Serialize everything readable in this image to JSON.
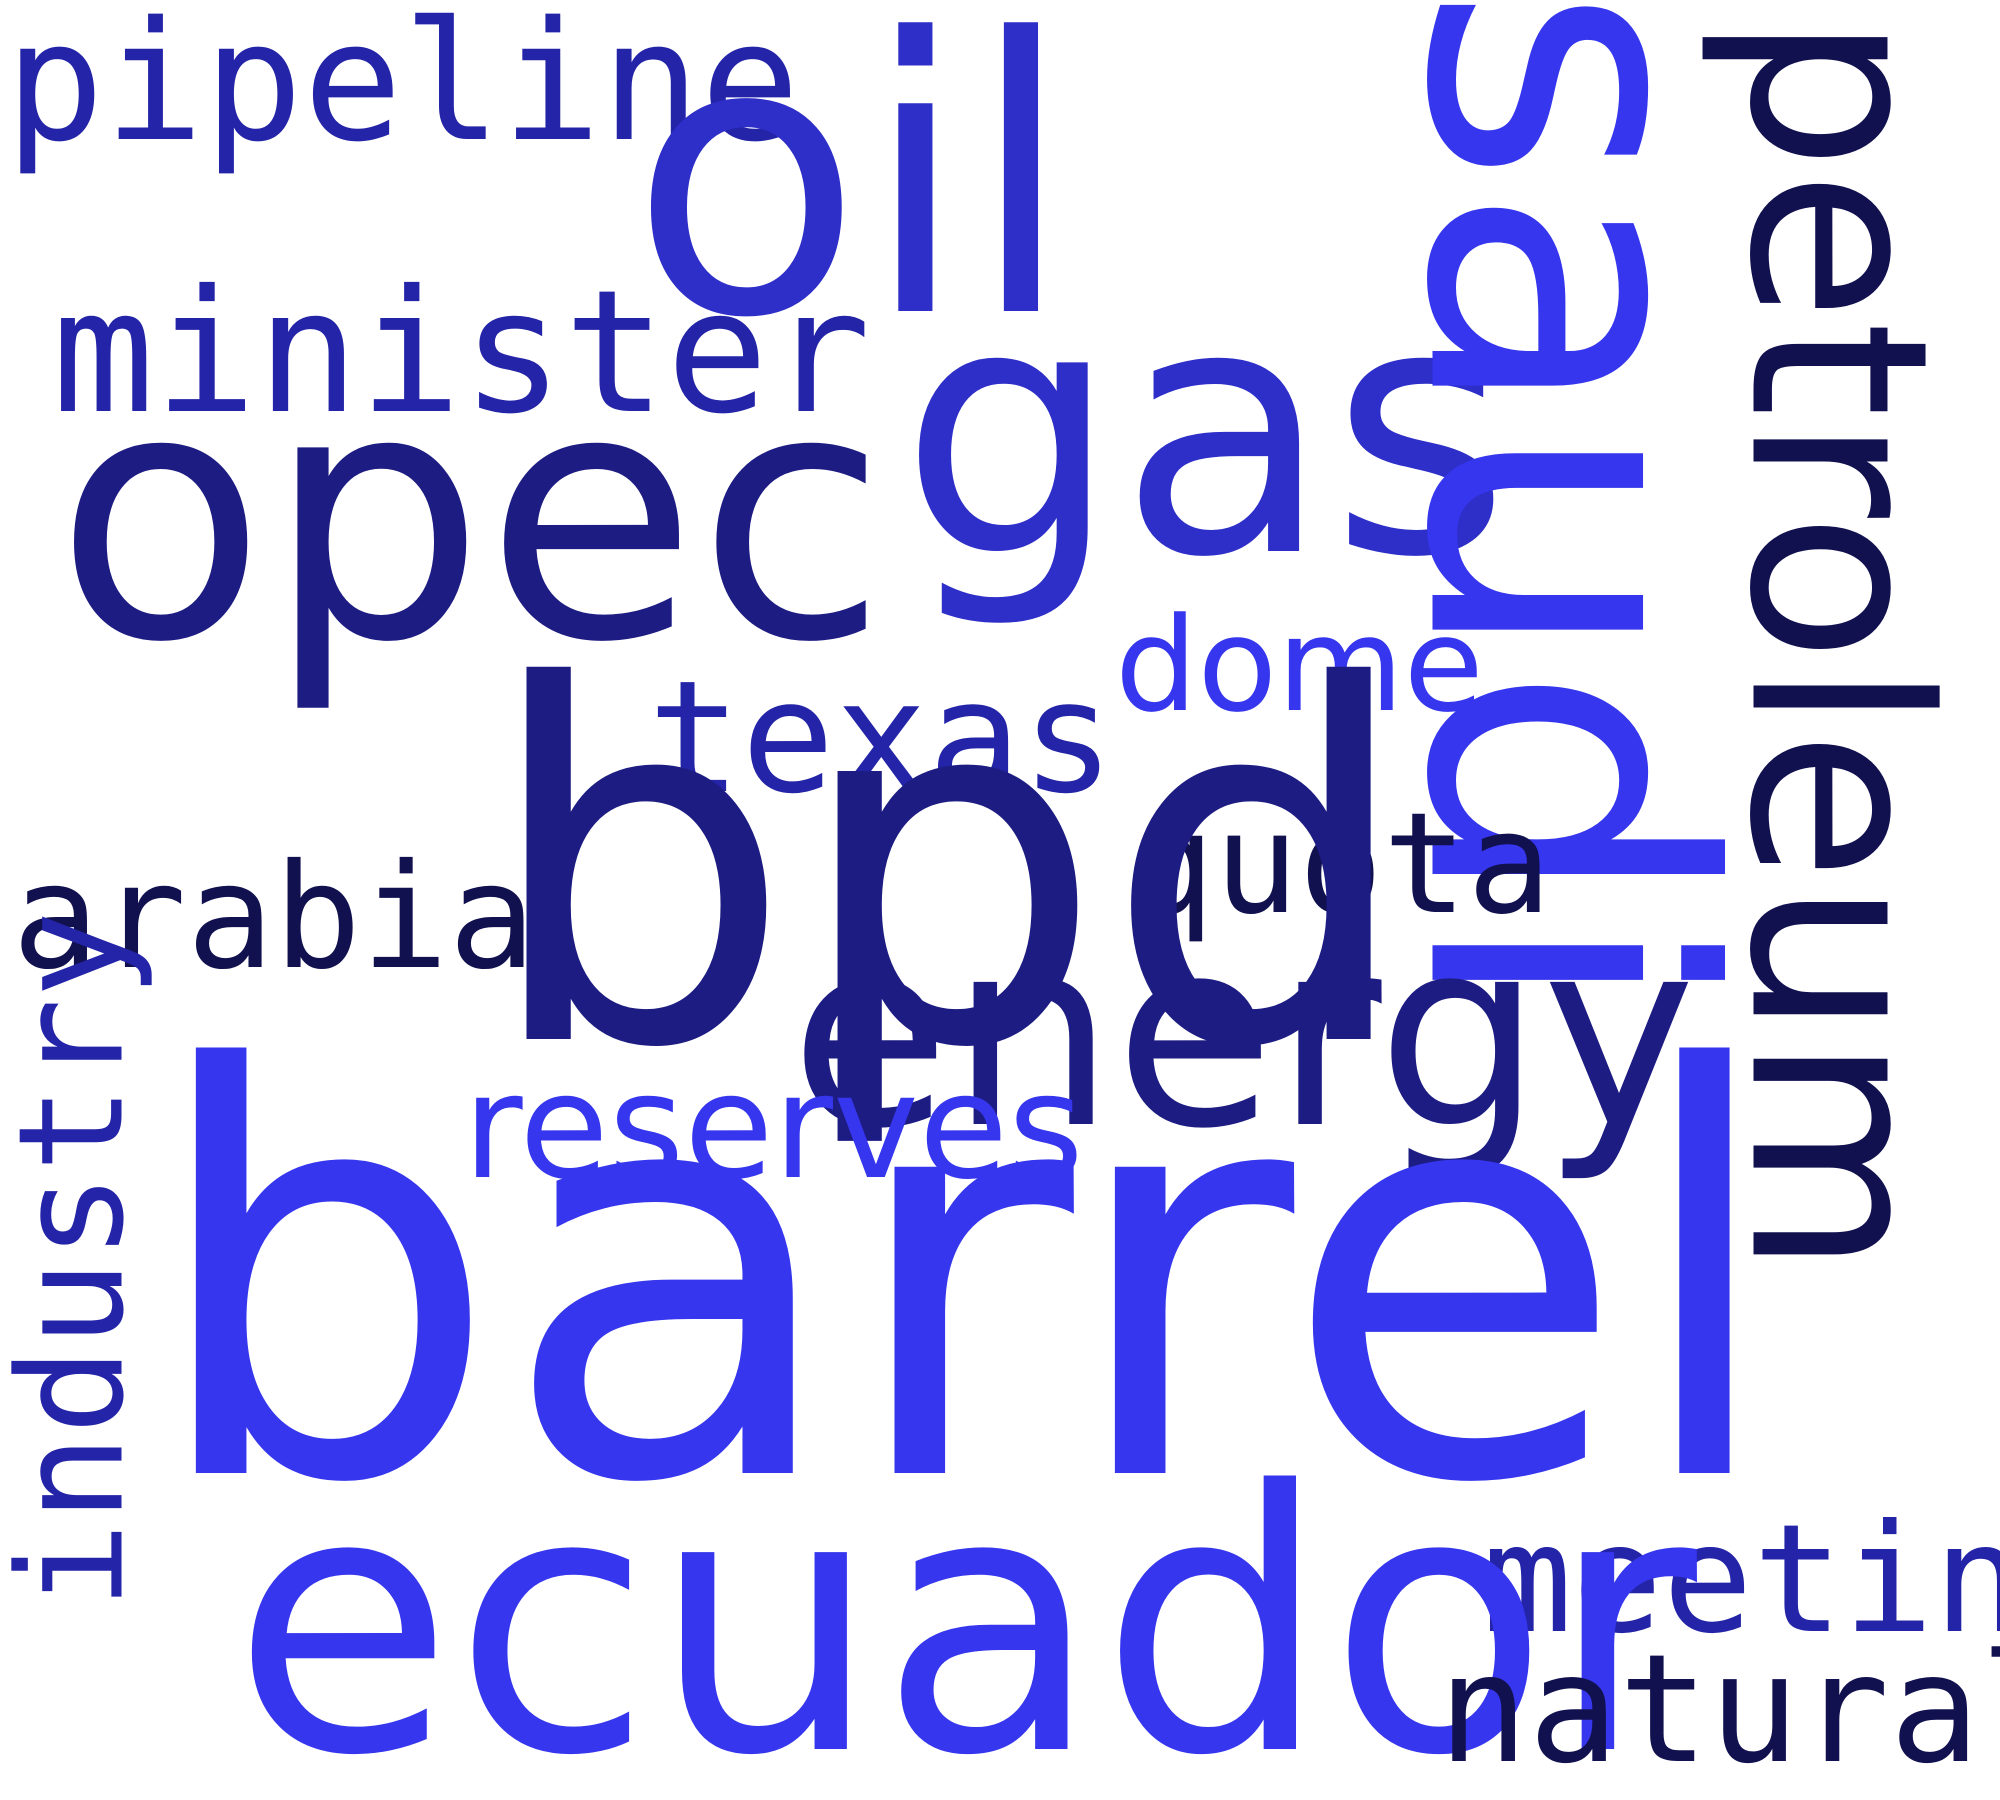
{
  "words": {
    "barrel": {
      "text": "barrel",
      "color": "#3636ee"
    },
    "bpd": {
      "text": "bpd",
      "color": "#1d1c82"
    },
    "opec": {
      "text": "opec",
      "color": "#1d1c82"
    },
    "oil": {
      "text": "oil",
      "color": "#2e2ec9"
    },
    "gas": {
      "text": "gas",
      "color": "#2e2ec9"
    },
    "saudi": {
      "text": "saudi",
      "color": "#3636ee"
    },
    "ecuador": {
      "text": "ecuador",
      "color": "#3636ee"
    },
    "energy": {
      "text": "energy",
      "color": "#1d1c82"
    },
    "petroleum": {
      "text": "petroleum",
      "color": "#121150"
    },
    "minister": {
      "text": "minister",
      "color": "#2424a8"
    },
    "pipeline": {
      "text": "pipeline",
      "color": "#2424a8"
    },
    "texas": {
      "text": "texas",
      "color": "#2424a8"
    },
    "dome": {
      "text": "dome",
      "color": "#3636ee"
    },
    "quota": {
      "text": "quota",
      "color": "#121150"
    },
    "arabia": {
      "text": "arabia",
      "color": "#121150"
    },
    "industry": {
      "text": "industry",
      "color": "#2424a8"
    },
    "reserves": {
      "text": "reserves",
      "color": "#3636ee"
    },
    "meeting": {
      "text": "meeting",
      "color": "#2424a8"
    },
    "natural": {
      "text": "natural",
      "color": "#121150"
    }
  }
}
